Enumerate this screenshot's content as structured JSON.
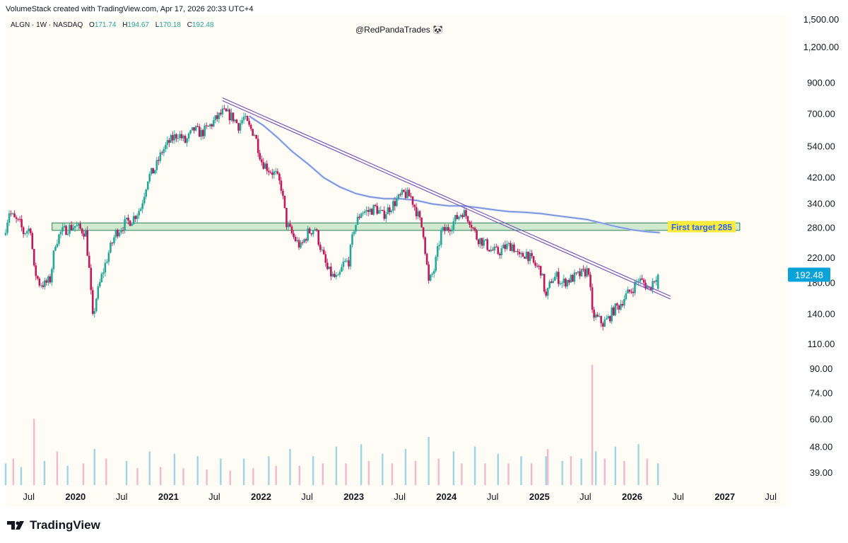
{
  "header": {
    "caption": "VolumeStack created with TradingView.com, Apr 17, 2026 20:33 UTC+4"
  },
  "legend": {
    "symbol": "ALGN · 1W · NASDAQ",
    "open_label": "O",
    "open": "171.74",
    "high_label": "H",
    "high": "194.67",
    "low_label": "L",
    "low": "170.18",
    "close_label": "C",
    "close": "192.48"
  },
  "watermark": "@RedPandaTrades 🐼",
  "brand": {
    "name": "TradingView"
  },
  "colors": {
    "bull": "#26a69a",
    "bear": "#c2185b",
    "vol_bull": "#9fd4e6",
    "vol_bear": "#f4b8cc",
    "zone_fill": "#c8e6c9",
    "zone_stroke": "#2e7d5b",
    "trendline": "#7e57c2",
    "ma": "#5b7fd6",
    "target_label_bg": "#ffeb3b",
    "target_label_text": "#2962ff",
    "price_tag": "#0aa3d9"
  },
  "chart_data": {
    "type": "candlestick",
    "symbol": "ALGN",
    "interval": "1W",
    "exchange": "NASDAQ",
    "y_scale": "log",
    "ylim": [
      35,
      1550
    ],
    "xlim": [
      "2019-04-01",
      "2027-09-01"
    ],
    "y_ticks": [
      1500,
      1200,
      900,
      700,
      540,
      420,
      340,
      280,
      220,
      180,
      140,
      110,
      90,
      74,
      60,
      48,
      39
    ],
    "y_tick_labels": [
      "1,500.00",
      "1,200.00",
      "900.00",
      "700.00",
      "540.00",
      "420.00",
      "340.00",
      "280.00",
      "220.00",
      "180.00",
      "140.00",
      "110.00",
      "90.00",
      "74.00",
      "60.00",
      "48.00",
      "39.00"
    ],
    "x_ticks": [
      {
        "label": "Jul",
        "date": "2019-07-01",
        "bold": false
      },
      {
        "label": "2020",
        "date": "2020-01-01",
        "bold": true
      },
      {
        "label": "Jul",
        "date": "2020-07-01",
        "bold": false
      },
      {
        "label": "2021",
        "date": "2021-01-01",
        "bold": true
      },
      {
        "label": "Jul",
        "date": "2021-07-01",
        "bold": false
      },
      {
        "label": "2022",
        "date": "2022-01-01",
        "bold": true
      },
      {
        "label": "Jul",
        "date": "2022-07-01",
        "bold": false
      },
      {
        "label": "2023",
        "date": "2023-01-01",
        "bold": true
      },
      {
        "label": "Jul",
        "date": "2023-07-01",
        "bold": false
      },
      {
        "label": "2024",
        "date": "2024-01-01",
        "bold": true
      },
      {
        "label": "Jul",
        "date": "2024-07-01",
        "bold": false
      },
      {
        "label": "2025",
        "date": "2025-01-01",
        "bold": true
      },
      {
        "label": "Jul",
        "date": "2025-07-01",
        "bold": false
      },
      {
        "label": "2026",
        "date": "2026-01-01",
        "bold": true
      },
      {
        "label": "Jul",
        "date": "2026-07-01",
        "bold": false
      },
      {
        "label": "2027",
        "date": "2027-01-01",
        "bold": true
      },
      {
        "label": "Jul",
        "date": "2027-07-01",
        "bold": false
      }
    ],
    "price_path": [
      [
        "2019-04-01",
        265
      ],
      [
        "2019-04-22",
        320
      ],
      [
        "2019-05-13",
        300
      ],
      [
        "2019-06-03",
        290
      ],
      [
        "2019-06-17",
        270
      ],
      [
        "2019-07-01",
        275
      ],
      [
        "2019-07-15",
        280
      ],
      [
        "2019-07-29",
        200
      ],
      [
        "2019-08-19",
        180
      ],
      [
        "2019-09-09",
        178
      ],
      [
        "2019-09-30",
        185
      ],
      [
        "2019-10-21",
        250
      ],
      [
        "2019-11-11",
        270
      ],
      [
        "2019-12-09",
        280
      ],
      [
        "2020-01-06",
        285
      ],
      [
        "2020-02-17",
        270
      ],
      [
        "2020-03-02",
        200
      ],
      [
        "2020-03-16",
        135
      ],
      [
        "2020-03-30",
        160
      ],
      [
        "2020-04-20",
        190
      ],
      [
        "2020-05-18",
        230
      ],
      [
        "2020-06-15",
        270
      ],
      [
        "2020-07-20",
        290
      ],
      [
        "2020-08-17",
        300
      ],
      [
        "2020-09-21",
        330
      ],
      [
        "2020-10-19",
        420
      ],
      [
        "2020-11-16",
        450
      ],
      [
        "2020-12-14",
        520
      ],
      [
        "2021-01-11",
        560
      ],
      [
        "2021-02-15",
        600
      ],
      [
        "2021-03-15",
        560
      ],
      [
        "2021-04-19",
        620
      ],
      [
        "2021-05-17",
        600
      ],
      [
        "2021-06-14",
        630
      ],
      [
        "2021-07-19",
        680
      ],
      [
        "2021-08-09",
        710
      ],
      [
        "2021-08-30",
        700
      ],
      [
        "2021-09-20",
        680
      ],
      [
        "2021-10-11",
        640
      ],
      [
        "2021-11-01",
        680
      ],
      [
        "2021-11-22",
        630
      ],
      [
        "2021-12-13",
        600
      ],
      [
        "2022-01-10",
        480
      ],
      [
        "2022-02-07",
        450
      ],
      [
        "2022-03-07",
        430
      ],
      [
        "2022-03-28",
        390
      ],
      [
        "2022-04-18",
        290
      ],
      [
        "2022-05-16",
        260
      ],
      [
        "2022-06-13",
        240
      ],
      [
        "2022-07-11",
        270
      ],
      [
        "2022-08-08",
        280
      ],
      [
        "2022-09-05",
        230
      ],
      [
        "2022-09-26",
        200
      ],
      [
        "2022-10-17",
        190
      ],
      [
        "2022-11-07",
        185
      ],
      [
        "2022-11-28",
        210
      ],
      [
        "2022-12-19",
        215
      ],
      [
        "2023-01-09",
        280
      ],
      [
        "2023-02-06",
        320
      ],
      [
        "2023-03-06",
        320
      ],
      [
        "2023-04-03",
        330
      ],
      [
        "2023-05-01",
        310
      ],
      [
        "2023-05-29",
        330
      ],
      [
        "2023-06-26",
        350
      ],
      [
        "2023-07-24",
        370
      ],
      [
        "2023-08-21",
        360
      ],
      [
        "2023-09-18",
        310
      ],
      [
        "2023-10-09",
        270
      ],
      [
        "2023-10-30",
        180
      ],
      [
        "2023-11-20",
        200
      ],
      [
        "2023-12-18",
        270
      ],
      [
        "2024-01-15",
        280
      ],
      [
        "2024-02-12",
        300
      ],
      [
        "2024-03-11",
        320
      ],
      [
        "2024-04-08",
        300
      ],
      [
        "2024-05-06",
        260
      ],
      [
        "2024-06-03",
        250
      ],
      [
        "2024-07-01",
        235
      ],
      [
        "2024-07-29",
        230
      ],
      [
        "2024-08-26",
        240
      ],
      [
        "2024-09-23",
        245
      ],
      [
        "2024-10-21",
        220
      ],
      [
        "2024-11-18",
        230
      ],
      [
        "2024-12-16",
        210
      ],
      [
        "2025-01-13",
        200
      ],
      [
        "2025-02-03",
        160
      ],
      [
        "2025-02-24",
        185
      ],
      [
        "2025-03-17",
        190
      ],
      [
        "2025-04-07",
        180
      ],
      [
        "2025-05-05",
        185
      ],
      [
        "2025-06-02",
        190
      ],
      [
        "2025-06-30",
        195
      ],
      [
        "2025-07-21",
        200
      ],
      [
        "2025-08-04",
        140
      ],
      [
        "2025-08-25",
        135
      ],
      [
        "2025-09-15",
        130
      ],
      [
        "2025-10-06",
        135
      ],
      [
        "2025-10-27",
        145
      ],
      [
        "2025-11-17",
        150
      ],
      [
        "2025-12-08",
        160
      ],
      [
        "2026-01-05",
        170
      ],
      [
        "2026-02-02",
        185
      ],
      [
        "2026-02-23",
        180
      ],
      [
        "2026-03-16",
        172
      ],
      [
        "2026-04-13",
        192
      ]
    ],
    "last_candle": {
      "date": "2026-04-13",
      "open": 171.74,
      "high": 194.67,
      "low": 170.18,
      "close": 192.48
    },
    "last_price_label": "192.48",
    "moving_average": [
      [
        "2021-11-15",
        690
      ],
      [
        "2022-01-10",
        640
      ],
      [
        "2022-03-07",
        580
      ],
      [
        "2022-05-02",
        520
      ],
      [
        "2022-07-04",
        470
      ],
      [
        "2022-09-05",
        420
      ],
      [
        "2022-11-07",
        390
      ],
      [
        "2023-01-09",
        370
      ],
      [
        "2023-03-06",
        360
      ],
      [
        "2023-05-01",
        355
      ],
      [
        "2023-07-03",
        355
      ],
      [
        "2023-09-04",
        350
      ],
      [
        "2023-11-06",
        340
      ],
      [
        "2024-01-08",
        335
      ],
      [
        "2024-03-04",
        335
      ],
      [
        "2024-05-06",
        330
      ],
      [
        "2024-07-01",
        325
      ],
      [
        "2024-09-02",
        320
      ],
      [
        "2024-11-04",
        318
      ],
      [
        "2025-01-06",
        315
      ],
      [
        "2025-03-03",
        310
      ],
      [
        "2025-05-05",
        305
      ],
      [
        "2025-07-07",
        300
      ],
      [
        "2025-09-01",
        292
      ],
      [
        "2025-11-03",
        283
      ],
      [
        "2026-01-05",
        276
      ],
      [
        "2026-03-02",
        272
      ],
      [
        "2026-04-20",
        270
      ]
    ],
    "trendline": {
      "from": [
        "2021-08-02",
        790
      ],
      "to": [
        "2026-06-01",
        160
      ]
    },
    "zone": {
      "from": "2019-10-01",
      "to": "2027-03-01",
      "low": 275,
      "high": 292
    },
    "target_label": "First target 285",
    "volume_max": 100,
    "volume": [
      [
        "2019-04-01",
        18
      ],
      [
        "2019-05-01",
        22
      ],
      [
        "2019-06-01",
        15
      ],
      [
        "2019-07-22",
        55
      ],
      [
        "2019-09-01",
        20
      ],
      [
        "2019-10-21",
        28
      ],
      [
        "2019-12-01",
        16
      ],
      [
        "2020-02-01",
        18
      ],
      [
        "2020-03-16",
        30
      ],
      [
        "2020-05-01",
        22
      ],
      [
        "2020-07-20",
        20
      ],
      [
        "2020-09-01",
        14
      ],
      [
        "2020-10-19",
        28
      ],
      [
        "2020-12-01",
        15
      ],
      [
        "2021-01-25",
        26
      ],
      [
        "2021-03-01",
        14
      ],
      [
        "2021-04-26",
        24
      ],
      [
        "2021-06-01",
        13
      ],
      [
        "2021-07-26",
        22
      ],
      [
        "2021-09-01",
        12
      ],
      [
        "2021-10-25",
        22
      ],
      [
        "2021-12-01",
        14
      ],
      [
        "2022-01-31",
        24
      ],
      [
        "2022-03-01",
        16
      ],
      [
        "2022-04-25",
        30
      ],
      [
        "2022-06-01",
        16
      ],
      [
        "2022-07-25",
        24
      ],
      [
        "2022-09-01",
        18
      ],
      [
        "2022-10-24",
        32
      ],
      [
        "2022-12-01",
        18
      ],
      [
        "2023-01-30",
        34
      ],
      [
        "2023-03-01",
        20
      ],
      [
        "2023-04-24",
        26
      ],
      [
        "2023-06-01",
        18
      ],
      [
        "2023-07-24",
        30
      ],
      [
        "2023-09-01",
        20
      ],
      [
        "2023-10-23",
        40
      ],
      [
        "2023-12-01",
        22
      ],
      [
        "2024-01-29",
        28
      ],
      [
        "2024-03-01",
        18
      ],
      [
        "2024-04-22",
        32
      ],
      [
        "2024-06-01",
        18
      ],
      [
        "2024-07-22",
        26
      ],
      [
        "2024-09-01",
        18
      ],
      [
        "2024-10-21",
        24
      ],
      [
        "2024-12-01",
        18
      ],
      [
        "2025-01-27",
        24
      ],
      [
        "2025-02-03",
        30
      ],
      [
        "2025-04-01",
        20
      ],
      [
        "2025-05-05",
        24
      ],
      [
        "2025-06-15",
        22
      ],
      [
        "2025-07-28",
        100
      ],
      [
        "2025-08-11",
        28
      ],
      [
        "2025-09-15",
        22
      ],
      [
        "2025-10-27",
        32
      ],
      [
        "2025-12-01",
        20
      ],
      [
        "2026-01-26",
        34
      ],
      [
        "2026-03-01",
        22
      ],
      [
        "2026-04-13",
        18
      ]
    ]
  }
}
